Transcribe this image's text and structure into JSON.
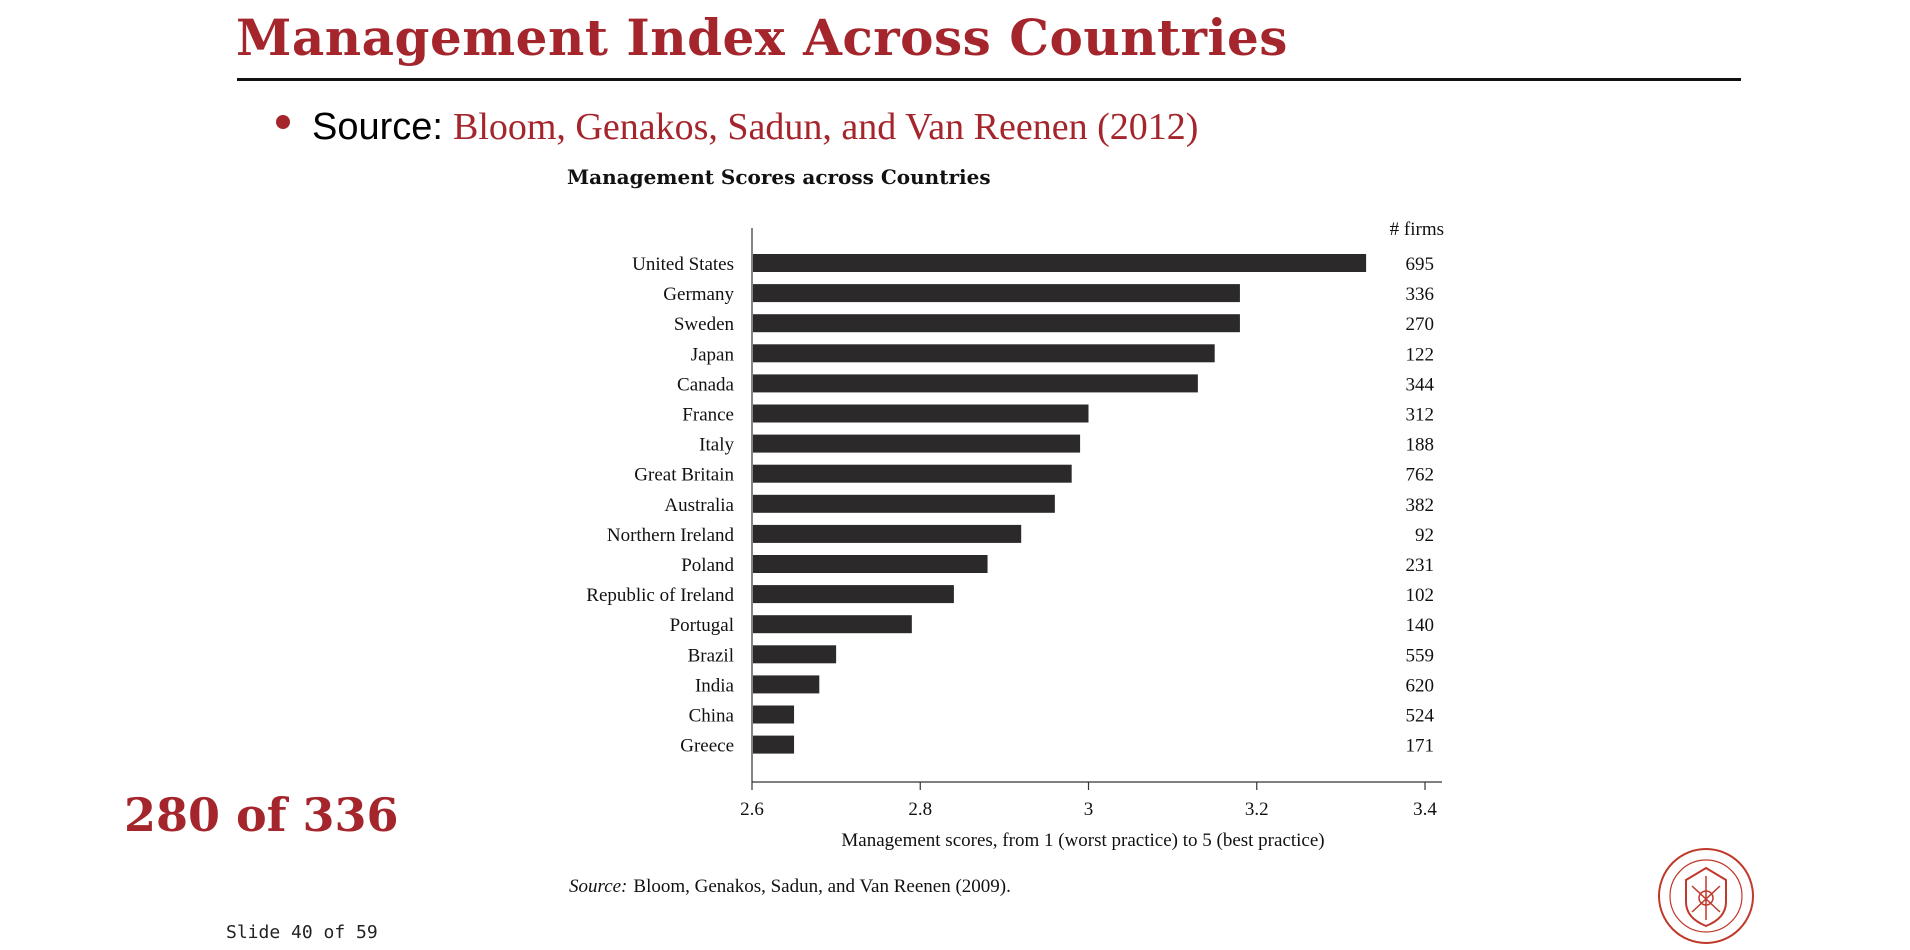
{
  "slide": {
    "title": "Management Index Across Countries",
    "bullet_label": "Source:",
    "bullet_citation": "Bloom, Genakos, Sadun, and Van Reenen (2012)",
    "counter": "280 of 336",
    "slide_number": "Slide 40 of 59"
  },
  "colors": {
    "accent": "#a4262c",
    "bar": "#2b292a",
    "text": "#111111"
  },
  "chart_data": {
    "type": "bar",
    "orientation": "horizontal",
    "title": "Management Scores across Countries",
    "xlabel": "Management scores, from 1 (worst practice) to 5 (best practice)",
    "xlim": [
      2.6,
      3.4
    ],
    "xticks": [
      2.6,
      2.8,
      3.0,
      3.2,
      3.4
    ],
    "xtick_labels": [
      "2.6",
      "2.8",
      "3",
      "3.2",
      "3.4"
    ],
    "right_column_header": "# firms",
    "categories": [
      "United States",
      "Germany",
      "Sweden",
      "Japan",
      "Canada",
      "France",
      "Italy",
      "Great Britain",
      "Australia",
      "Northern Ireland",
      "Poland",
      "Republic of Ireland",
      "Portugal",
      "Brazil",
      "India",
      "China",
      "Greece"
    ],
    "values": [
      3.33,
      3.18,
      3.18,
      3.15,
      3.13,
      3.0,
      2.99,
      2.98,
      2.96,
      2.92,
      2.88,
      2.84,
      2.79,
      2.7,
      2.68,
      2.65,
      2.65
    ],
    "firms": [
      695,
      336,
      270,
      122,
      344,
      312,
      188,
      762,
      382,
      92,
      231,
      102,
      140,
      559,
      620,
      524,
      171
    ],
    "grid": false,
    "source_label": "Source:",
    "source_text": "Bloom, Genakos, Sadun, and Van Reenen (2009)."
  }
}
